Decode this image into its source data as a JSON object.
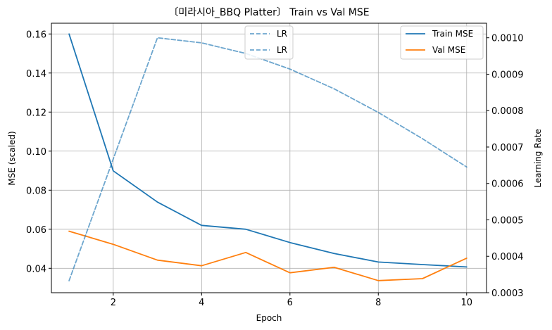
{
  "chart_data": {
    "type": "line",
    "title": "〔미라시아_BBQ Platter〕 Train vs Val MSE",
    "xlabel": "Epoch",
    "ylabel": "MSE (scaled)",
    "y2label": "Learning Rate",
    "x": [
      1,
      2,
      3,
      4,
      5,
      6,
      7,
      8,
      9,
      10
    ],
    "xlim": [
      0.6,
      10.45
    ],
    "ylim": [
      0.0275,
      0.1655
    ],
    "y2lim": [
      0.0003,
      0.00104
    ],
    "xticks": [
      2,
      4,
      6,
      8,
      10
    ],
    "yticks": [
      0.04,
      0.06,
      0.08,
      0.1,
      0.12,
      0.14,
      0.16
    ],
    "y2ticks": [
      0.0003,
      0.0004,
      0.0005,
      0.0006,
      0.0007,
      0.0008,
      0.0009,
      0.001
    ],
    "xtick_labels": [
      "2",
      "4",
      "6",
      "8",
      "10"
    ],
    "ytick_labels": [
      "0.04",
      "0.06",
      "0.08",
      "0.10",
      "0.12",
      "0.14",
      "0.16"
    ],
    "y2tick_labels": [
      "0.0003",
      "0.0004",
      "0.0005",
      "0.0006",
      "0.0007",
      "0.0008",
      "0.0009",
      "0.0010"
    ],
    "grid": true,
    "series": [
      {
        "name": "Train MSE",
        "axis": "left",
        "color": "#1f77b4",
        "dashed": false,
        "values": [
          0.16,
          0.0899,
          0.0739,
          0.062,
          0.06,
          0.0532,
          0.0476,
          0.0432,
          0.0419,
          0.0407
        ]
      },
      {
        "name": "Val MSE",
        "axis": "left",
        "color": "#ff7f0e",
        "dashed": false,
        "values": [
          0.059,
          0.0523,
          0.0442,
          0.0413,
          0.0481,
          0.0377,
          0.0405,
          0.0337,
          0.0347,
          0.0452
        ]
      },
      {
        "name": "LR",
        "axis": "right",
        "color": "#1f77b4",
        "dashed": true,
        "values": [
          0.000333,
          0.000667,
          0.001,
          0.000986,
          0.000957,
          0.000914,
          0.00086,
          0.000795,
          0.000723,
          0.000645
        ]
      }
    ],
    "legend_left": {
      "placement": "top-center",
      "entries": [
        "LR",
        "LR"
      ],
      "color": "#1f77b4"
    },
    "legend_right": {
      "placement": "top-right",
      "entries": [
        "Train MSE",
        "Val MSE"
      ],
      "colors": [
        "#1f77b4",
        "#ff7f0e"
      ]
    }
  }
}
